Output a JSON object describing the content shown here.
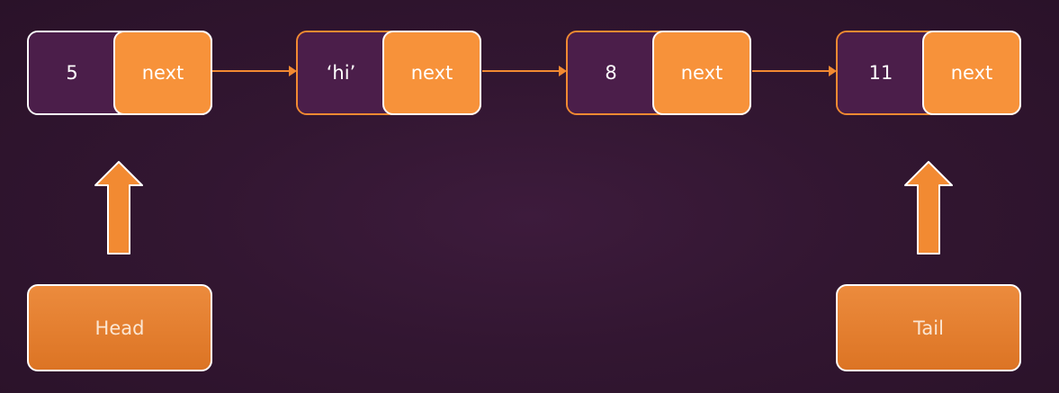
{
  "diagram": {
    "nodes": [
      {
        "value": "5",
        "pointer": "next"
      },
      {
        "value": "‘hi’",
        "pointer": "next"
      },
      {
        "value": "8",
        "pointer": "next"
      },
      {
        "value": "11",
        "pointer": "next"
      }
    ],
    "head_label": "Head",
    "tail_label": "Tail"
  },
  "colors": {
    "background": "#321631",
    "value_cell": "#4b1e4a",
    "pointer_cell": "#f7923a",
    "arrow": "#f28a32"
  }
}
